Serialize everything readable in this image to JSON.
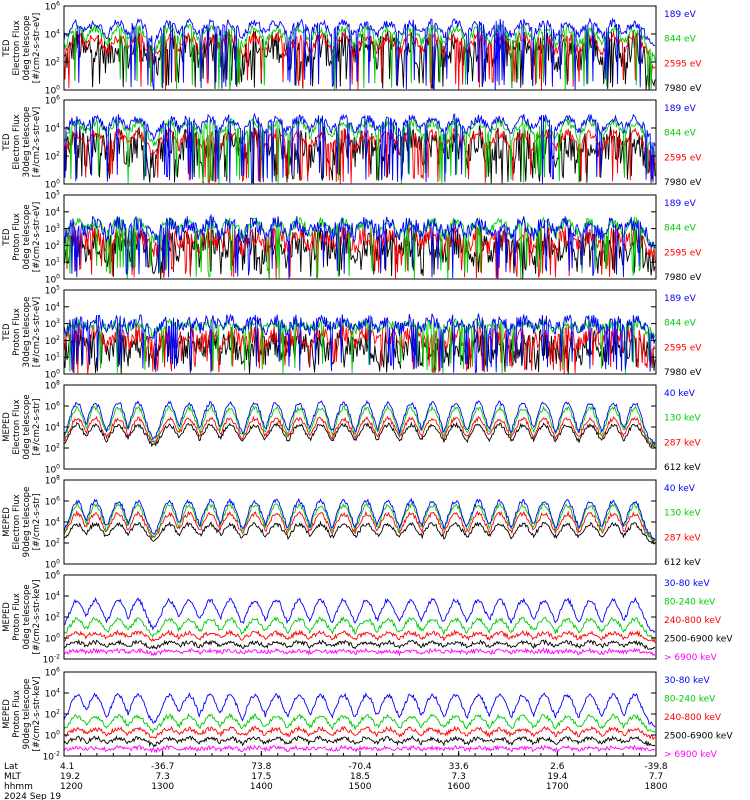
{
  "chart_data": [
    {
      "type": "line",
      "ylabel_lines": [
        "TED",
        "Electron Flux",
        "0deg telescope",
        "[#/cm2-s-str-eV]"
      ],
      "ylog": true,
      "ylim_exp": [
        0,
        6
      ],
      "ytick_labels": [
        "10^6",
        "10^4",
        "10^2",
        "10^0"
      ],
      "series": [
        {
          "name": "7980 eV",
          "color": "#000000",
          "baseline": 1.2,
          "high": 3.2,
          "noise": 1.2
        },
        {
          "name": "2595 eV",
          "color": "#ff0000",
          "baseline": 1.5,
          "high": 3.8,
          "noise": 0.4
        },
        {
          "name": "844 eV",
          "color": "#00cc00",
          "baseline": 2.0,
          "high": 4.4,
          "noise": 0.3
        },
        {
          "name": "189 eV",
          "color": "#0000ff",
          "baseline": 2.9,
          "high": 4.8,
          "noise": 0.3
        }
      ]
    },
    {
      "type": "line",
      "ylabel_lines": [
        "TED",
        "Electron Flux",
        "30deg telescope",
        "[#/cm2-s-str-eV]"
      ],
      "ylog": true,
      "ylim_exp": [
        0,
        6
      ],
      "ytick_labels": [
        "10^6",
        "10^4",
        "10^2",
        "10^0"
      ],
      "series": [
        {
          "name": "7980 eV",
          "color": "#000000",
          "baseline": 1.0,
          "high": 3.0,
          "noise": 1.2
        },
        {
          "name": "2595 eV",
          "color": "#ff0000",
          "baseline": 1.3,
          "high": 3.6,
          "noise": 0.4
        },
        {
          "name": "844 eV",
          "color": "#00cc00",
          "baseline": 2.2,
          "high": 4.4,
          "noise": 0.3
        },
        {
          "name": "189 eV",
          "color": "#0000ff",
          "baseline": 2.8,
          "high": 4.7,
          "noise": 0.3
        }
      ]
    },
    {
      "type": "line",
      "ylabel_lines": [
        "TED",
        "Proton Flux",
        "0deg telescope",
        "[#/cm2-s-str-eV]"
      ],
      "ylog": true,
      "ylim_exp": [
        0,
        5
      ],
      "ytick_labels": [
        "10^5",
        "10^4",
        "10^3",
        "10^2",
        "10^1",
        "10^0"
      ],
      "series": [
        {
          "name": "7980 eV",
          "color": "#000000",
          "baseline": 0.7,
          "high": 2.2,
          "noise": 0.9
        },
        {
          "name": "2595 eV",
          "color": "#ff0000",
          "baseline": 1.2,
          "high": 2.6,
          "noise": 0.6
        },
        {
          "name": "844 eV",
          "color": "#00cc00",
          "baseline": 1.8,
          "high": 3.4,
          "noise": 0.3
        },
        {
          "name": "189 eV",
          "color": "#0000ff",
          "baseline": 1.9,
          "high": 3.3,
          "noise": 0.5
        }
      ]
    },
    {
      "type": "line",
      "ylabel_lines": [
        "TED",
        "Proton Flux",
        "30deg telescope",
        "[#/cm2-s-str-eV]"
      ],
      "ylog": true,
      "ylim_exp": [
        0,
        5
      ],
      "ytick_labels": [
        "10^5",
        "10^4",
        "10^3",
        "10^2",
        "10^1",
        "10^0"
      ],
      "series": [
        {
          "name": "7980 eV",
          "color": "#000000",
          "baseline": 0.6,
          "high": 1.8,
          "noise": 0.9
        },
        {
          "name": "2595 eV",
          "color": "#ff0000",
          "baseline": 1.1,
          "high": 2.4,
          "noise": 0.6
        },
        {
          "name": "844 eV",
          "color": "#00cc00",
          "baseline": 2.3,
          "high": 3.0,
          "noise": 0.3
        },
        {
          "name": "189 eV",
          "color": "#0000ff",
          "baseline": 2.0,
          "high": 3.2,
          "noise": 0.4
        }
      ]
    },
    {
      "type": "line",
      "ylabel_lines": [
        "MEPED",
        "Electron Flux",
        "0deg telescope",
        "[#/cm2-s-str]"
      ],
      "ylog": true,
      "ylim_exp": [
        0,
        8
      ],
      "ytick_labels": [
        "10^8",
        "10^6",
        "10^4",
        "10^2",
        "10^0"
      ],
      "series": [
        {
          "name": "612 keV",
          "color": "#000000",
          "baseline": 2.0,
          "high": 4.2,
          "noise": 0.2
        },
        {
          "name": "287 keV",
          "color": "#ff0000",
          "baseline": 2.2,
          "high": 4.8,
          "noise": 0.2
        },
        {
          "name": "130 keV",
          "color": "#00cc00",
          "baseline": 2.2,
          "high": 5.8,
          "noise": 0.2
        },
        {
          "name": "40 keV",
          "color": "#0000ff",
          "baseline": 2.4,
          "high": 6.3,
          "noise": 0.2
        }
      ]
    },
    {
      "type": "line",
      "ylabel_lines": [
        "MEPED",
        "Electron Flux",
        "90deg telescope",
        "[#/cm2-s-str]"
      ],
      "ylog": true,
      "ylim_exp": [
        0,
        8
      ],
      "ytick_labels": [
        "10^8",
        "10^6",
        "10^4",
        "10^2",
        "10^0"
      ],
      "series": [
        {
          "name": "612 keV",
          "color": "#000000",
          "baseline": 2.0,
          "high": 3.8,
          "noise": 0.2
        },
        {
          "name": "287 keV",
          "color": "#ff0000",
          "baseline": 2.2,
          "high": 4.8,
          "noise": 0.2
        },
        {
          "name": "130 keV",
          "color": "#00cc00",
          "baseline": 2.2,
          "high": 5.6,
          "noise": 0.2
        },
        {
          "name": "40 keV",
          "color": "#0000ff",
          "baseline": 2.4,
          "high": 6.0,
          "noise": 0.2
        }
      ]
    },
    {
      "type": "line",
      "ylabel_lines": [
        "MEPED",
        "Proton Flux",
        "0deg telescope",
        "[#/cm2-s-str-keV]"
      ],
      "ylog": true,
      "ylim_exp": [
        -2,
        6
      ],
      "ytick_labels": [
        "10^6",
        "10^4",
        "10^2",
        "10^0",
        "10^-2"
      ],
      "series": [
        {
          "name": "> 6900 keV",
          "color": "#ff00ff",
          "baseline": -1.5,
          "high": -1.2,
          "noise": 0.2
        },
        {
          "name": "2500-6900 keV",
          "color": "#000000",
          "baseline": -1.0,
          "high": -0.4,
          "noise": 0.2
        },
        {
          "name": "240-800 keV",
          "color": "#ff0000",
          "baseline": -0.3,
          "high": 0.5,
          "noise": 0.2
        },
        {
          "name": "80-240 keV",
          "color": "#00cc00",
          "baseline": 0.0,
          "high": 1.8,
          "noise": 0.2
        },
        {
          "name": "30-80 keV",
          "color": "#0000ff",
          "baseline": 0.6,
          "high": 3.6,
          "noise": 0.2
        }
      ]
    },
    {
      "type": "line",
      "ylabel_lines": [
        "MEPED",
        "Proton Flux",
        "90deg telescope",
        "[#/cm2-s-str-keV]"
      ],
      "ylog": true,
      "ylim_exp": [
        -2,
        6
      ],
      "ytick_labels": [
        "10^6",
        "10^4",
        "10^2",
        "10^0",
        "10^-2"
      ],
      "series": [
        {
          "name": "> 6900 keV",
          "color": "#ff00ff",
          "baseline": -1.5,
          "high": -1.2,
          "noise": 0.2
        },
        {
          "name": "2500-6900 keV",
          "color": "#000000",
          "baseline": -1.0,
          "high": -0.3,
          "noise": 0.2
        },
        {
          "name": "240-800 keV",
          "color": "#ff0000",
          "baseline": -0.3,
          "high": 0.6,
          "noise": 0.2
        },
        {
          "name": "80-240 keV",
          "color": "#00cc00",
          "baseline": 0.2,
          "high": 1.8,
          "noise": 0.2
        },
        {
          "name": "30-80 keV",
          "color": "#0000ff",
          "baseline": 0.8,
          "high": 3.8,
          "noise": 0.2
        }
      ]
    }
  ],
  "time_axis": {
    "row_labels": [
      "Lat",
      "MLT",
      "hhmm",
      "2024 Sep 19"
    ],
    "columns": [
      {
        "lat": "4.1",
        "mlt": "19.2",
        "hhmm": "1200"
      },
      {
        "lat": "-36.7",
        "mlt": "7.3",
        "hhmm": "1300"
      },
      {
        "lat": "73.8",
        "mlt": "17.5",
        "hhmm": "1400"
      },
      {
        "lat": "-70.4",
        "mlt": "18.5",
        "hhmm": "1500"
      },
      {
        "lat": "33.6",
        "mlt": "7.3",
        "hhmm": "1600"
      },
      {
        "lat": "2.6",
        "mlt": "19.4",
        "hhmm": "1700"
      },
      {
        "lat": "-39.8",
        "mlt": "7.7",
        "hhmm": "1800"
      }
    ],
    "time_range_hhmm": [
      "1200",
      "1800"
    ],
    "pass_centers_hhmm": [
      "1208",
      "1219",
      "1233",
      "1245",
      "1304",
      "1316",
      "1329",
      "1341",
      "1356",
      "1409",
      "1423",
      "1436",
      "1450",
      "1504",
      "1517",
      "1531",
      "1544",
      "1558",
      "1612",
      "1625",
      "1639",
      "1652",
      "1706",
      "1720",
      "1734",
      "1747"
    ]
  }
}
